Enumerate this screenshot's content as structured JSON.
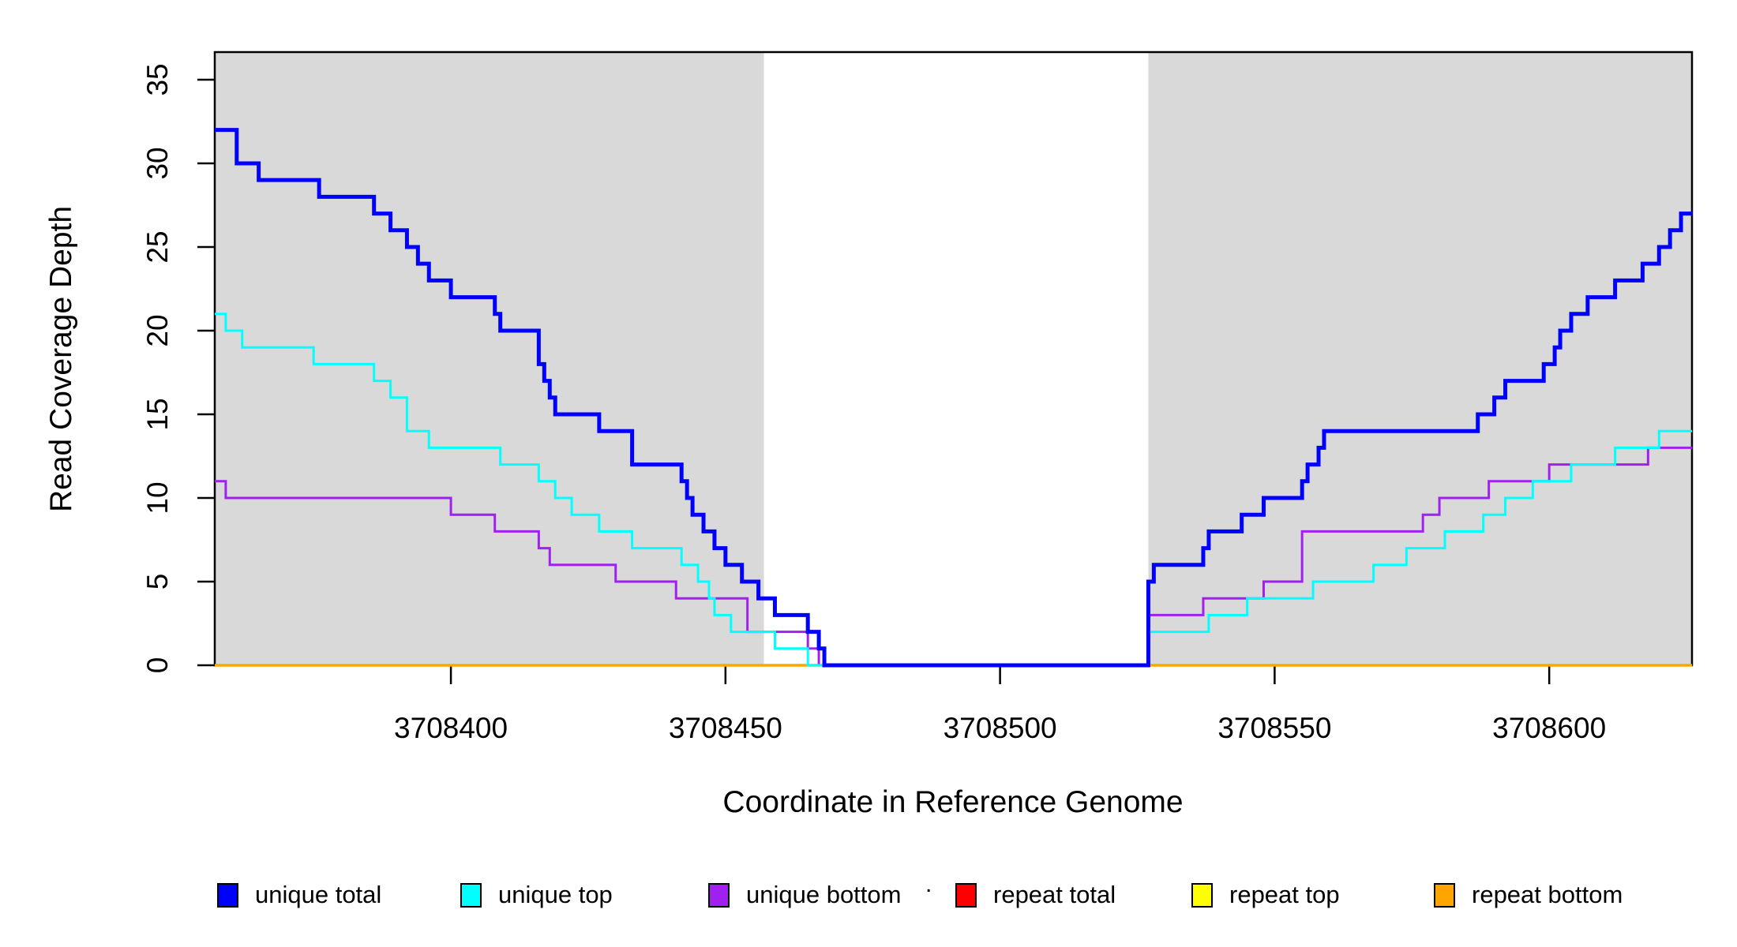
{
  "figure": {
    "xlabel": "Coordinate in Reference Genome",
    "ylabel": "Read Coverage Depth",
    "stray_dot": "."
  },
  "chart_data": {
    "type": "line",
    "subtype": "step-coverage",
    "title": "",
    "xlabel": "Coordinate in Reference Genome",
    "ylabel": "Read Coverage Depth",
    "xlim": [
      3708357,
      3708626
    ],
    "ylim": [
      0,
      36.65
    ],
    "x_ticks": [
      3708400,
      3708450,
      3708500,
      3708550,
      3708600
    ],
    "y_ticks": [
      0,
      5,
      10,
      15,
      20,
      25,
      30,
      35
    ],
    "grid": false,
    "background_color": "#FFFFFF",
    "shade_color": "#D9D9D9",
    "shaded_regions": [
      {
        "from": 3708357,
        "to": 3708457
      },
      {
        "from": 3708527,
        "to": 3708626
      }
    ],
    "unshaded_gap": {
      "from": 3708457,
      "to": 3708527
    },
    "legend_position": "bottom",
    "legend": [
      {
        "label": "unique total",
        "color": "#0000FF"
      },
      {
        "label": "unique top",
        "color": "#00FFFF"
      },
      {
        "label": "unique bottom",
        "color": "#A020F0"
      },
      {
        "label": "repeat total",
        "color": "#FF0000"
      },
      {
        "label": "repeat top",
        "color": "#FFFF00"
      },
      {
        "label": "repeat bottom",
        "color": "#FFA500"
      }
    ],
    "series": [
      {
        "name": "repeat total",
        "color": "#FF0000",
        "line_width": 3,
        "steps": [
          [
            3708357,
            0
          ]
        ]
      },
      {
        "name": "repeat top",
        "color": "#FFFF00",
        "line_width": 3,
        "steps": [
          [
            3708357,
            0
          ]
        ]
      },
      {
        "name": "repeat bottom",
        "color": "#FFA500",
        "line_width": 3.5,
        "steps": [
          [
            3708357,
            0
          ]
        ]
      },
      {
        "name": "unique bottom",
        "color": "#A020F0",
        "line_width": 3,
        "steps": [
          [
            3708357,
            11
          ],
          [
            3708359,
            10
          ],
          [
            3708400,
            9
          ],
          [
            3708408,
            8
          ],
          [
            3708416,
            7
          ],
          [
            3708418,
            6
          ],
          [
            3708430,
            5
          ],
          [
            3708441,
            4
          ],
          [
            3708454,
            2
          ],
          [
            3708465,
            1
          ],
          [
            3708467,
            0
          ],
          [
            3708527,
            3
          ],
          [
            3708537,
            4
          ],
          [
            3708548,
            5
          ],
          [
            3708555,
            8
          ],
          [
            3708577,
            9
          ],
          [
            3708580,
            10
          ],
          [
            3708589,
            11
          ],
          [
            3708600,
            12
          ],
          [
            3708618,
            13
          ]
        ]
      },
      {
        "name": "unique top",
        "color": "#00FFFF",
        "line_width": 3,
        "steps": [
          [
            3708357,
            21
          ],
          [
            3708359,
            20
          ],
          [
            3708362,
            19
          ],
          [
            3708375,
            18
          ],
          [
            3708386,
            17
          ],
          [
            3708389,
            16
          ],
          [
            3708392,
            14
          ],
          [
            3708396,
            13
          ],
          [
            3708409,
            12
          ],
          [
            3708416,
            11
          ],
          [
            3708419,
            10
          ],
          [
            3708422,
            9
          ],
          [
            3708427,
            8
          ],
          [
            3708433,
            7
          ],
          [
            3708442,
            6
          ],
          [
            3708445,
            5
          ],
          [
            3708447,
            4
          ],
          [
            3708448,
            3
          ],
          [
            3708451,
            2
          ],
          [
            3708459,
            1
          ],
          [
            3708465,
            0
          ],
          [
            3708527,
            2
          ],
          [
            3708538,
            3
          ],
          [
            3708545,
            4
          ],
          [
            3708557,
            5
          ],
          [
            3708568,
            6
          ],
          [
            3708574,
            7
          ],
          [
            3708581,
            8
          ],
          [
            3708588,
            9
          ],
          [
            3708592,
            10
          ],
          [
            3708597,
            11
          ],
          [
            3708604,
            12
          ],
          [
            3708612,
            13
          ],
          [
            3708620,
            14
          ]
        ]
      },
      {
        "name": "unique total",
        "color": "#0000FF",
        "line_width": 5,
        "steps": [
          [
            3708357,
            32
          ],
          [
            3708361,
            30
          ],
          [
            3708365,
            29
          ],
          [
            3708376,
            28
          ],
          [
            3708386,
            27
          ],
          [
            3708389,
            26
          ],
          [
            3708392,
            25
          ],
          [
            3708394,
            24
          ],
          [
            3708396,
            23
          ],
          [
            3708400,
            22
          ],
          [
            3708408,
            21
          ],
          [
            3708409,
            20
          ],
          [
            3708416,
            18
          ],
          [
            3708417,
            17
          ],
          [
            3708418,
            16
          ],
          [
            3708419,
            15
          ],
          [
            3708427,
            14
          ],
          [
            3708433,
            12
          ],
          [
            3708442,
            11
          ],
          [
            3708443,
            10
          ],
          [
            3708444,
            9
          ],
          [
            3708446,
            8
          ],
          [
            3708448,
            7
          ],
          [
            3708450,
            6
          ],
          [
            3708453,
            5
          ],
          [
            3708456,
            4
          ],
          [
            3708459,
            3
          ],
          [
            3708465,
            2
          ],
          [
            3708467,
            1
          ],
          [
            3708468,
            0
          ],
          [
            3708527,
            5
          ],
          [
            3708528,
            6
          ],
          [
            3708537,
            7
          ],
          [
            3708538,
            8
          ],
          [
            3708544,
            9
          ],
          [
            3708548,
            10
          ],
          [
            3708555,
            11
          ],
          [
            3708556,
            12
          ],
          [
            3708558,
            13
          ],
          [
            3708559,
            14
          ],
          [
            3708587,
            15
          ],
          [
            3708590,
            16
          ],
          [
            3708592,
            17
          ],
          [
            3708599,
            18
          ],
          [
            3708601,
            19
          ],
          [
            3708602,
            20
          ],
          [
            3708604,
            21
          ],
          [
            3708607,
            22
          ],
          [
            3708612,
            23
          ],
          [
            3708617,
            24
          ],
          [
            3708620,
            25
          ],
          [
            3708622,
            26
          ],
          [
            3708624,
            27
          ]
        ]
      }
    ]
  }
}
